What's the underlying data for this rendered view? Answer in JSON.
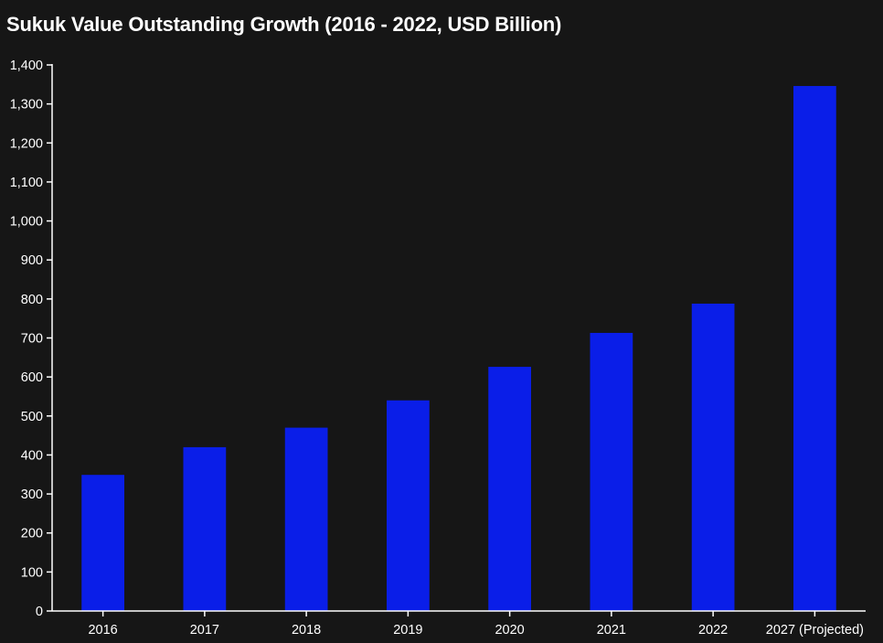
{
  "chart_data": {
    "type": "bar",
    "title": "Sukuk Value Outstanding Growth (2016 - 2022, USD Billion)",
    "xlabel": "",
    "ylabel": "",
    "categories": [
      "2016",
      "2017",
      "2018",
      "2019",
      "2020",
      "2021",
      "2022",
      "2027 (Projected)"
    ],
    "values": [
      349,
      420,
      470,
      540,
      626,
      713,
      788,
      1346
    ],
    "ylim": [
      0,
      1400
    ],
    "yticks": [
      0,
      100,
      200,
      300,
      400,
      500,
      600,
      700,
      800,
      900,
      1000,
      1100,
      1200,
      1300,
      1400
    ],
    "ytick_labels": [
      "0",
      "100",
      "200",
      "300",
      "400",
      "500",
      "600",
      "700",
      "800",
      "900",
      "1,000",
      "1,100",
      "1,200",
      "1,300",
      "1,400"
    ],
    "grid": false,
    "legend": "none",
    "colors": {
      "bar": "#0a1ee8",
      "axis": "#ffffff",
      "background": "#161616",
      "text": "#ffffff"
    }
  }
}
